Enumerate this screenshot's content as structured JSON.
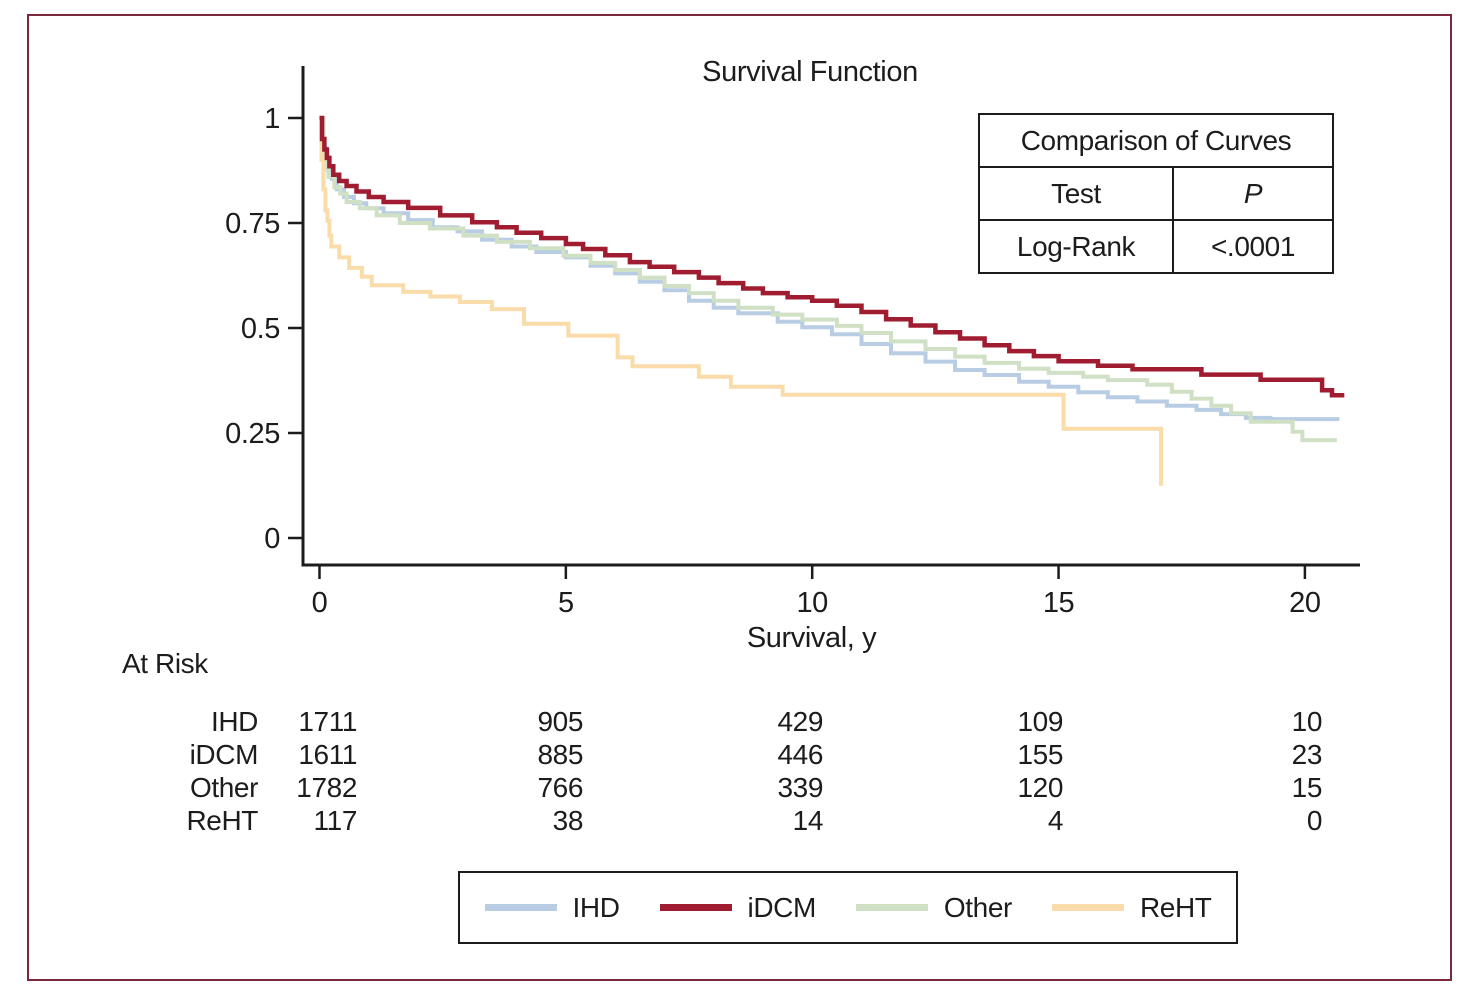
{
  "figure": {
    "background": "#ffffff",
    "border_color": "#7b2a3d",
    "text_color": "#1c1c1c"
  },
  "title": "Survival Function",
  "comparison_table": {
    "title": "Comparison of Curves",
    "test_header": "Test",
    "p_header": "P",
    "test_value": "Log-Rank",
    "p_value": "<.0001"
  },
  "at_risk": {
    "heading": "At Risk",
    "rows": [
      {
        "label": "IHD",
        "values": [
          "1711",
          "905",
          "429",
          "109",
          "10"
        ]
      },
      {
        "label": "iDCM",
        "values": [
          "1611",
          "885",
          "446",
          "155",
          "23"
        ]
      },
      {
        "label": "Other",
        "values": [
          "1782",
          "766",
          "339",
          "120",
          "15"
        ]
      },
      {
        "label": "ReHT",
        "values": [
          "117",
          "38",
          "14",
          "4",
          "0"
        ]
      }
    ]
  },
  "legend": {
    "items": [
      {
        "label": "IHD"
      },
      {
        "label": "iDCM"
      },
      {
        "label": "Other"
      },
      {
        "label": "ReHT"
      }
    ]
  },
  "chart_data": {
    "type": "line",
    "subtype": "kaplan-meier-step",
    "title": "Survival Function",
    "xlabel": "Survival, y",
    "ylabel": "",
    "xlim": [
      0,
      21.4
    ],
    "ylim": [
      0,
      1
    ],
    "x_ticks": [
      0,
      5,
      10,
      15,
      20
    ],
    "y_ticks": [
      0,
      0.25,
      0.5,
      0.75,
      1
    ],
    "y_tick_labels": [
      "0",
      "0.25",
      "0.5",
      "0.75",
      "1"
    ],
    "grid": false,
    "legend_position": "bottom",
    "series": [
      {
        "name": "IHD",
        "color": "#b8cde4",
        "width": 4,
        "points": [
          [
            0,
            1.0
          ],
          [
            0.08,
            0.93
          ],
          [
            0.12,
            0.9
          ],
          [
            0.17,
            0.876
          ],
          [
            0.25,
            0.855
          ],
          [
            0.35,
            0.83
          ],
          [
            0.5,
            0.812
          ],
          [
            0.7,
            0.797
          ],
          [
            0.95,
            0.785
          ],
          [
            1.3,
            0.773
          ],
          [
            1.8,
            0.757
          ],
          [
            2.3,
            0.74
          ],
          [
            2.8,
            0.73
          ],
          [
            3.3,
            0.71
          ],
          [
            3.9,
            0.694
          ],
          [
            4.4,
            0.681
          ],
          [
            5.0,
            0.668
          ],
          [
            5.5,
            0.648
          ],
          [
            6.0,
            0.63
          ],
          [
            6.5,
            0.61
          ],
          [
            7.0,
            0.59
          ],
          [
            7.5,
            0.565
          ],
          [
            8.0,
            0.548
          ],
          [
            8.5,
            0.535
          ],
          [
            9.3,
            0.515
          ],
          [
            9.8,
            0.502
          ],
          [
            10.4,
            0.485
          ],
          [
            11.0,
            0.462
          ],
          [
            11.6,
            0.44
          ],
          [
            12.3,
            0.42
          ],
          [
            12.9,
            0.4
          ],
          [
            13.5,
            0.388
          ],
          [
            14.2,
            0.372
          ],
          [
            14.8,
            0.36
          ],
          [
            15.4,
            0.347
          ],
          [
            16.0,
            0.335
          ],
          [
            16.6,
            0.325
          ],
          [
            17.2,
            0.315
          ],
          [
            17.8,
            0.305
          ],
          [
            18.3,
            0.295
          ],
          [
            18.8,
            0.286
          ],
          [
            19.3,
            0.283
          ]
        ],
        "end_t": 20.7
      },
      {
        "name": "Other",
        "color": "#cfe0c5",
        "width": 4,
        "points": [
          [
            0,
            1.0
          ],
          [
            0.07,
            0.92
          ],
          [
            0.12,
            0.88
          ],
          [
            0.18,
            0.86
          ],
          [
            0.3,
            0.835
          ],
          [
            0.42,
            0.82
          ],
          [
            0.55,
            0.8
          ],
          [
            0.82,
            0.785
          ],
          [
            1.16,
            0.768
          ],
          [
            1.63,
            0.75
          ],
          [
            2.24,
            0.737
          ],
          [
            2.92,
            0.72
          ],
          [
            3.6,
            0.705
          ],
          [
            4.27,
            0.69
          ],
          [
            4.95,
            0.672
          ],
          [
            5.5,
            0.655
          ],
          [
            6.0,
            0.638
          ],
          [
            6.5,
            0.62
          ],
          [
            7.0,
            0.6
          ],
          [
            7.5,
            0.583
          ],
          [
            8.0,
            0.565
          ],
          [
            8.5,
            0.548
          ],
          [
            9.2,
            0.532
          ],
          [
            9.8,
            0.52
          ],
          [
            10.5,
            0.505
          ],
          [
            11.0,
            0.488
          ],
          [
            11.6,
            0.468
          ],
          [
            12.3,
            0.45
          ],
          [
            12.9,
            0.432
          ],
          [
            13.5,
            0.417
          ],
          [
            14.2,
            0.403
          ],
          [
            14.8,
            0.393
          ],
          [
            15.5,
            0.384
          ],
          [
            16.0,
            0.376
          ],
          [
            16.8,
            0.365
          ],
          [
            17.3,
            0.348
          ],
          [
            17.7,
            0.332
          ],
          [
            18.1,
            0.315
          ],
          [
            18.5,
            0.297
          ],
          [
            18.9,
            0.277
          ],
          [
            19.75,
            0.253
          ],
          [
            19.95,
            0.233
          ]
        ],
        "end_t": 20.65
      },
      {
        "name": "ReHT",
        "color": "#f9dcaa",
        "width": 4,
        "points": [
          [
            0,
            1.0
          ],
          [
            0.04,
            0.9
          ],
          [
            0.08,
            0.83
          ],
          [
            0.12,
            0.78
          ],
          [
            0.16,
            0.755
          ],
          [
            0.2,
            0.72
          ],
          [
            0.24,
            0.694
          ],
          [
            0.4,
            0.668
          ],
          [
            0.6,
            0.643
          ],
          [
            0.86,
            0.622
          ],
          [
            1.06,
            0.602
          ],
          [
            1.7,
            0.586
          ],
          [
            2.25,
            0.575
          ],
          [
            2.85,
            0.562
          ],
          [
            3.5,
            0.545
          ],
          [
            4.15,
            0.51
          ],
          [
            5.05,
            0.482
          ],
          [
            6.05,
            0.43
          ],
          [
            6.35,
            0.409
          ],
          [
            7.7,
            0.384
          ],
          [
            8.35,
            0.36
          ],
          [
            9.4,
            0.341
          ],
          [
            15.1,
            0.26
          ],
          [
            17.08,
            0.124
          ]
        ],
        "end_t": 17.08
      },
      {
        "name": "iDCM",
        "color": "#a01d31",
        "width": 4.5,
        "points": [
          [
            0,
            1.0
          ],
          [
            0.05,
            0.95
          ],
          [
            0.1,
            0.925
          ],
          [
            0.15,
            0.905
          ],
          [
            0.2,
            0.885
          ],
          [
            0.28,
            0.865
          ],
          [
            0.4,
            0.85
          ],
          [
            0.55,
            0.838
          ],
          [
            0.75,
            0.825
          ],
          [
            1.0,
            0.812
          ],
          [
            1.3,
            0.8
          ],
          [
            1.8,
            0.786
          ],
          [
            2.45,
            0.768
          ],
          [
            3.1,
            0.752
          ],
          [
            3.6,
            0.74
          ],
          [
            4.0,
            0.727
          ],
          [
            4.5,
            0.714
          ],
          [
            5.0,
            0.7
          ],
          [
            5.35,
            0.688
          ],
          [
            5.8,
            0.673
          ],
          [
            6.3,
            0.657
          ],
          [
            6.7,
            0.646
          ],
          [
            7.2,
            0.633
          ],
          [
            7.7,
            0.62
          ],
          [
            8.1,
            0.607
          ],
          [
            8.6,
            0.594
          ],
          [
            9.0,
            0.583
          ],
          [
            9.5,
            0.573
          ],
          [
            10.0,
            0.565
          ],
          [
            10.5,
            0.553
          ],
          [
            11.0,
            0.538
          ],
          [
            11.5,
            0.521
          ],
          [
            12.0,
            0.506
          ],
          [
            12.5,
            0.49
          ],
          [
            13.0,
            0.475
          ],
          [
            13.5,
            0.459
          ],
          [
            14.0,
            0.445
          ],
          [
            14.5,
            0.433
          ],
          [
            15.0,
            0.421
          ],
          [
            15.8,
            0.41
          ],
          [
            16.5,
            0.402
          ],
          [
            17.9,
            0.389
          ],
          [
            19.1,
            0.377
          ],
          [
            20.35,
            0.352
          ],
          [
            20.55,
            0.34
          ]
        ],
        "end_t": 20.8
      }
    ]
  }
}
